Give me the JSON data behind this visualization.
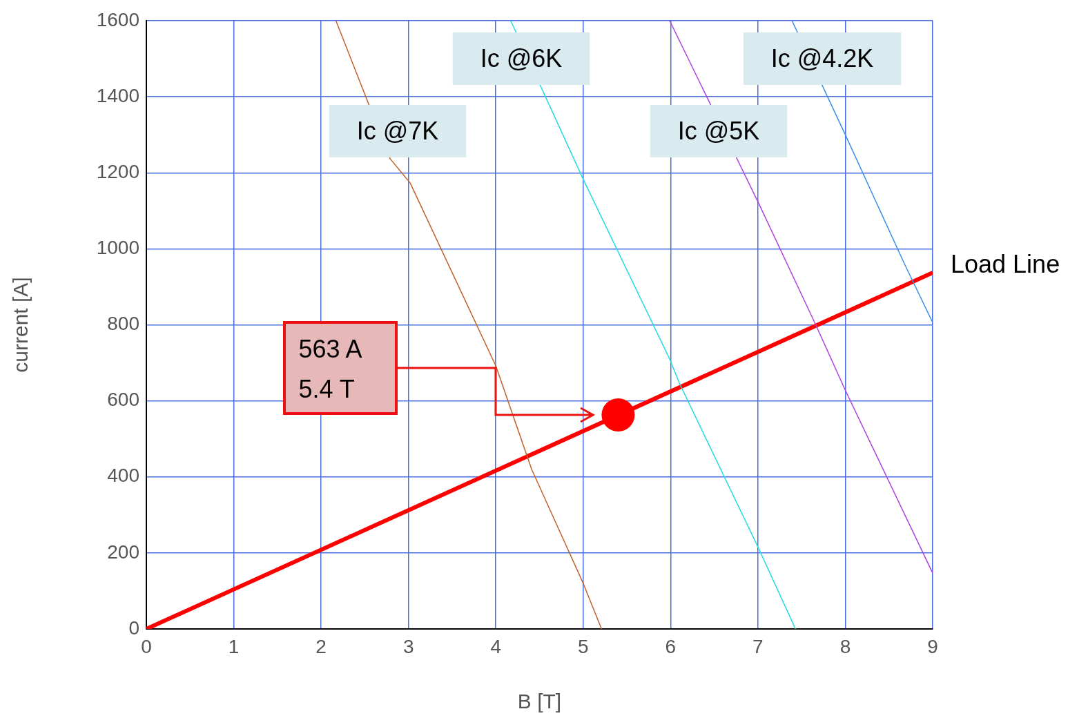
{
  "chart_data": {
    "type": "line",
    "xlabel": "B [T]",
    "ylabel": "current [A]",
    "xlim": [
      0,
      9
    ],
    "xticks": [
      0,
      1,
      2,
      3,
      4,
      5,
      6,
      7,
      8,
      9
    ],
    "ylim": [
      0,
      1600
    ],
    "yticks": [
      0,
      200,
      400,
      600,
      800,
      1000,
      1200,
      1400,
      1600
    ],
    "grid": true,
    "legend": false,
    "marker": "none",
    "line_style": "solid",
    "series": [
      {
        "color": "#c0622a",
        "x": [
          2.17,
          2.79,
          3.02,
          4,
          4.41,
          5,
          5.21
        ],
        "values": [
          1600,
          1237,
          1173,
          692,
          420,
          120,
          0
        ]
      },
      {
        "color": "#22dddd",
        "x": [
          4.17,
          5,
          5.99,
          6.1,
          7.01,
          7.43
        ],
        "values": [
          1600,
          1183,
          710,
          647,
          211,
          0
        ]
      },
      {
        "color": "#b040e0",
        "x": [
          5.99,
          7.01,
          7.66,
          8,
          9
        ],
        "values": [
          1600,
          1119,
          801,
          628,
          147
        ]
      },
      {
        "color": "#3a8ee8",
        "x": [
          7.39,
          8,
          8.67,
          9
        ],
        "values": [
          1600,
          1300,
          964,
          806
        ]
      },
      {
        "color": "#ff0000",
        "x": [
          0,
          9
        ],
        "values": [
          0,
          937
        ]
      },
      {
        "type": "scatter",
        "marker": "circle",
        "color": "#ff0000",
        "x": [
          5.4
        ],
        "values": [
          563
        ]
      }
    ],
    "annotations": [
      "Ic @7K",
      "Ic @6K",
      "Ic @5K",
      "Ic @4.2K",
      {
        "text": "Load Line",
        "x": 9,
        "y": 937
      },
      "563 A\n5.4 T"
    ]
  }
}
